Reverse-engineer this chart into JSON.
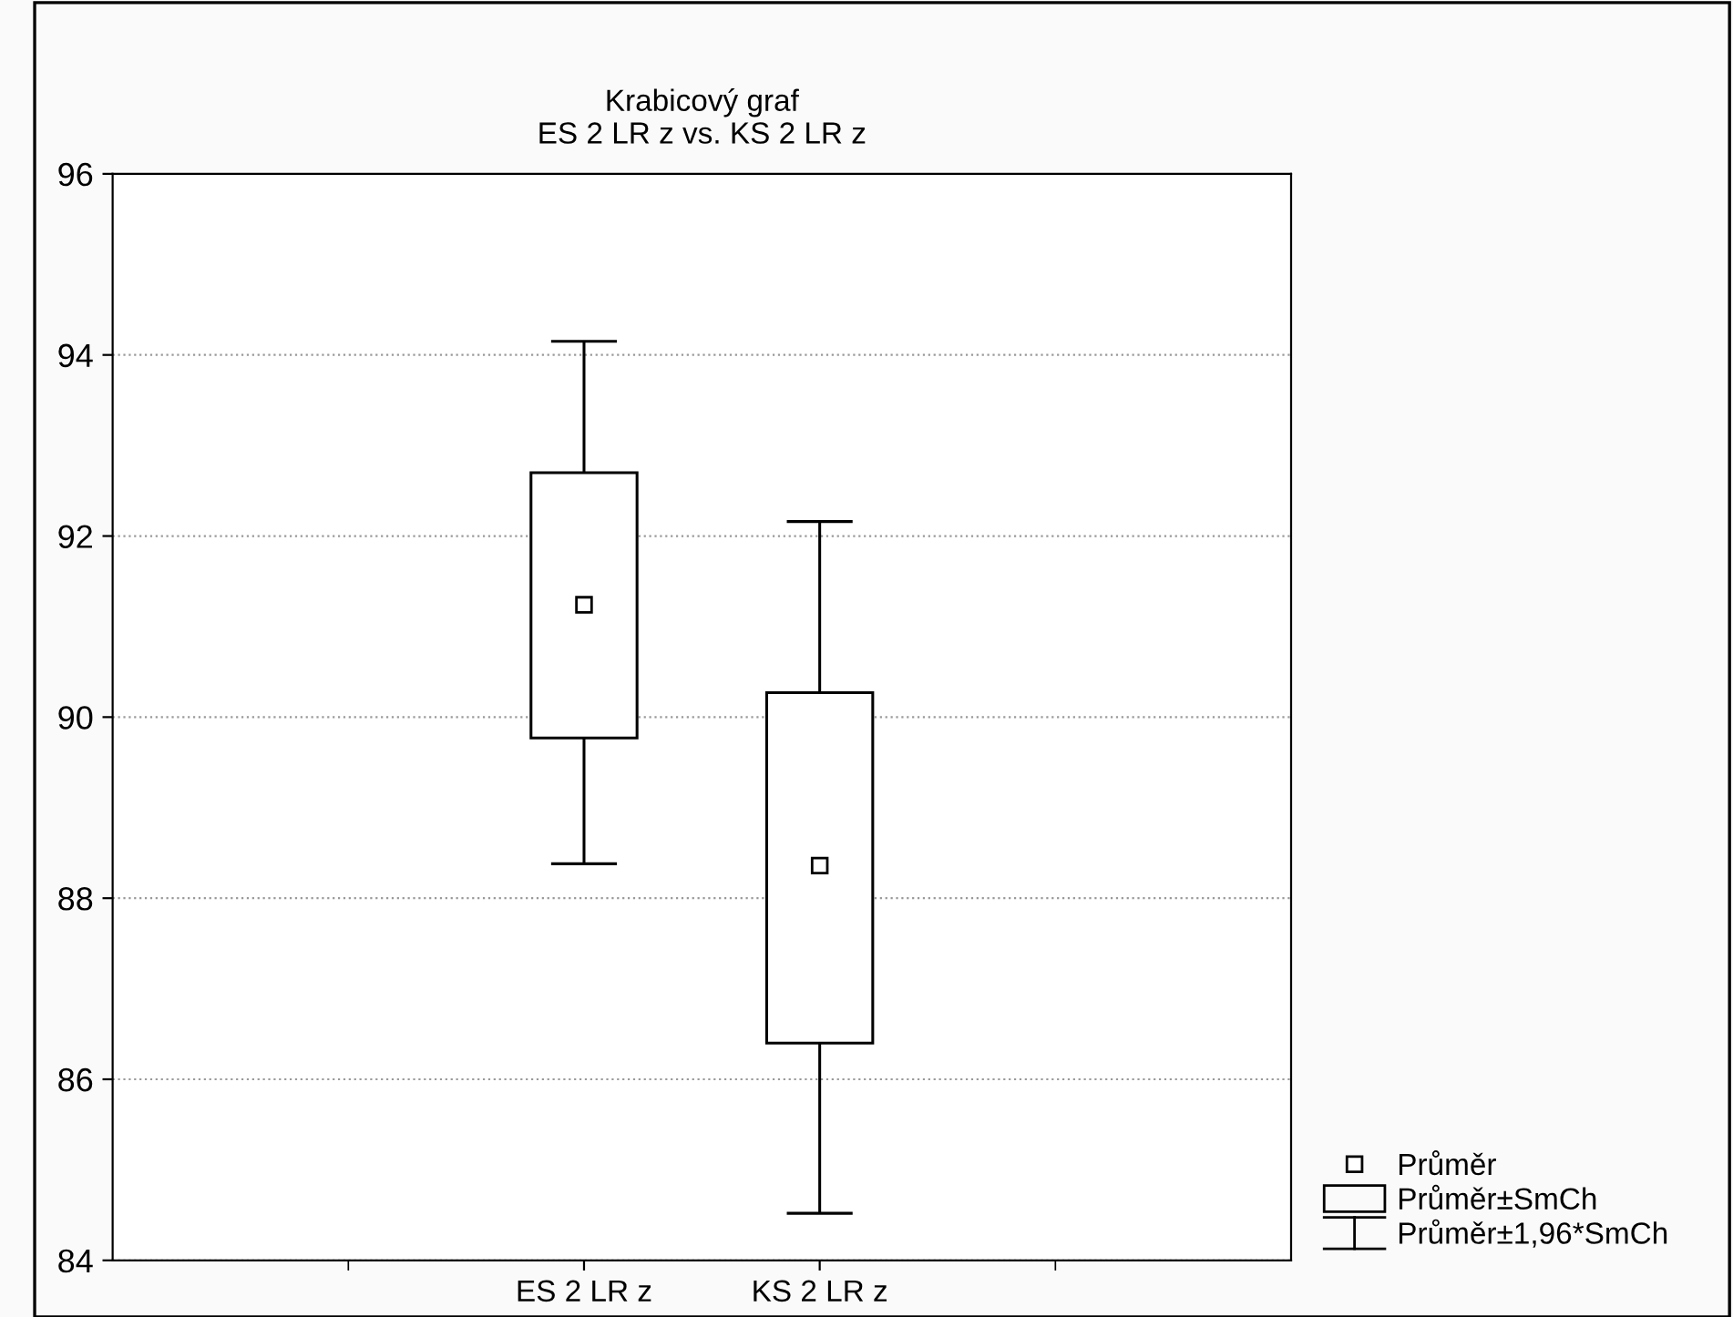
{
  "chart_data": {
    "type": "bar",
    "title": "Krabicový graf\nES 2 LR z vs. KS 2 LR z",
    "categories": [
      "ES 2 LR z",
      "KS 2 LR z"
    ],
    "series": [
      {
        "name": "Průměr",
        "type": "scatter",
        "color": "#000000",
        "marker": "square",
        "values": [
          91.24,
          88.36
        ],
        "errors": [
          [
            88.38,
            94.15
          ],
          [
            84.52,
            92.16
          ]
        ]
      },
      {
        "name": "Průměr±SmCh",
        "color": "#000000",
        "base": [
          89.77,
          86.4
        ],
        "values": [
          2.93,
          3.87
        ]
      },
      {
        "name": "Průměr±1,96*SmCh",
        "type": "scatter",
        "color": "#000000",
        "marker": "none",
        "values": [
          null,
          null
        ]
      }
    ],
    "ylim": [
      84,
      96
    ],
    "yticks": [
      84,
      86,
      88,
      90,
      92,
      94,
      96
    ],
    "grid": "y",
    "legend": "bottom right"
  }
}
